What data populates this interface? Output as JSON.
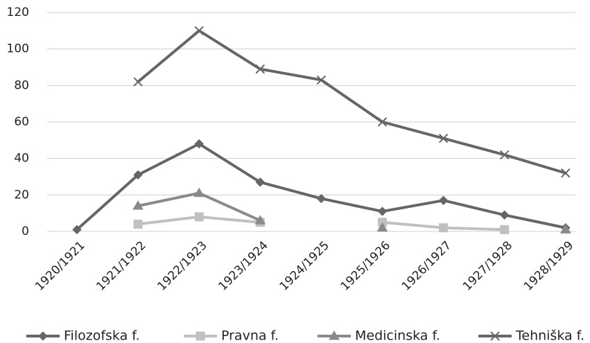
{
  "chart_data": {
    "type": "line",
    "categories": [
      "1920/1921",
      "1921/1922",
      "1922/1923",
      "1923/1924",
      "1924/1925",
      "1925/1926",
      "1926/1927",
      "1927/1928",
      "1928/1929"
    ],
    "series": [
      {
        "name": "Filozofska f.",
        "values": [
          1,
          31,
          48,
          27,
          18,
          11,
          17,
          9,
          2
        ],
        "color": "#666666",
        "marker": "diamond"
      },
      {
        "name": "Pravna f.",
        "values": [
          null,
          4,
          8,
          5,
          null,
          5,
          2,
          1,
          null
        ],
        "color": "#c0c0c0",
        "marker": "square"
      },
      {
        "name": "Medicinska f.",
        "values": [
          null,
          14,
          21,
          6,
          null,
          2,
          null,
          null,
          1
        ],
        "color": "#8a8a8a",
        "marker": "triangle"
      },
      {
        "name": "Tehniška f.",
        "values": [
          null,
          82,
          110,
          89,
          83,
          60,
          51,
          42,
          32
        ],
        "color": "#666666",
        "marker": "x"
      }
    ],
    "yticks": [
      0,
      20,
      40,
      60,
      80,
      100,
      120
    ],
    "ylim": [
      0,
      120
    ],
    "grid": true,
    "legend": "bottom"
  }
}
